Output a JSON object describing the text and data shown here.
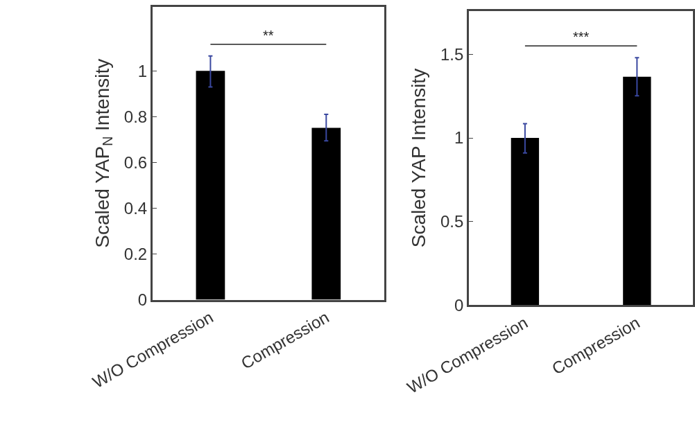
{
  "chart_data": [
    {
      "type": "bar",
      "categories": [
        "W/O Compression",
        "Compression"
      ],
      "values": [
        1.0,
        0.751
      ],
      "errors": [
        [
          0.93,
          1.065
        ],
        [
          0.694,
          0.81
        ]
      ],
      "color": "#000000",
      "ylabel": "Scaled YAP$_{N}$ Intensity",
      "ylim": [
        0,
        1.28
      ],
      "yticks": [
        0,
        0.2,
        0.4,
        0.6,
        0.8,
        1
      ],
      "annotations": [
        "**"
      ]
    },
    {
      "type": "bar",
      "categories": [
        "W/O Compression",
        "Compression"
      ],
      "values": [
        1.0,
        1.366
      ],
      "errors": [
        [
          0.91,
          1.085
        ],
        [
          1.252,
          1.48
        ]
      ],
      "color": "#000000",
      "ylabel": "Scaled YAP Intensity",
      "ylim": [
        0,
        1.76
      ],
      "yticks": [
        0,
        0.5,
        1,
        1.5
      ],
      "annotations": [
        "***"
      ]
    }
  ]
}
